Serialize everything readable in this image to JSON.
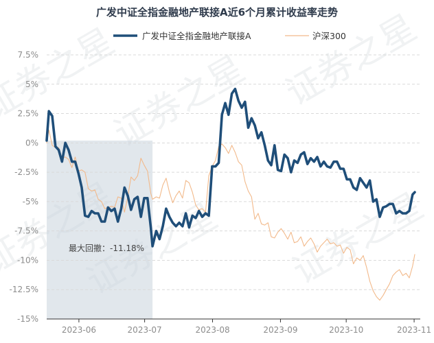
{
  "watermark": "证券之星",
  "chart_data": {
    "type": "line",
    "title": "广发中证全指金融地产联接A近6个月累计收益率走势",
    "ylim": [
      -15,
      7.5
    ],
    "y_ticks": [
      7.5,
      5,
      2.5,
      0,
      -2.5,
      -5,
      -7.5,
      -10,
      -12.5,
      -15
    ],
    "y_tick_labels": [
      "7.5%",
      "5%",
      "2.5%",
      "0%",
      "-2.5%",
      "-5%",
      "-7.5%",
      "-10%",
      "-12.5%",
      "-15%"
    ],
    "x_tick_labels": [
      "2023-06",
      "2023-07",
      "2023-08",
      "2023-09",
      "2023-10",
      "2023-11"
    ],
    "x_tick_positions": [
      14.7,
      44.7,
      75.7,
      106.7,
      136.7,
      167.7
    ],
    "xlim": [
      0,
      170.5
    ],
    "legend_position": "top",
    "annotation": {
      "text": "最大回撤：-11.18%",
      "start_x": 0,
      "end_x": 48.3
    },
    "series": [
      {
        "name": "广发中证全指金融地产联接A",
        "color": "#1f4e79",
        "values": [
          [
            0,
            0.2
          ],
          [
            1,
            2.7
          ],
          [
            2.5,
            2.3
          ],
          [
            4,
            -0.3
          ],
          [
            5.5,
            -0.6
          ],
          [
            7,
            -1.6
          ],
          [
            8.5,
            0.0
          ],
          [
            10,
            -0.6
          ],
          [
            11.5,
            -1.6
          ],
          [
            13,
            -1.6
          ],
          [
            14.5,
            -2.6
          ],
          [
            16,
            -3.8
          ],
          [
            17.5,
            -6.2
          ],
          [
            19,
            -6.3
          ],
          [
            20.5,
            -5.8
          ],
          [
            22,
            -6.0
          ],
          [
            23.5,
            -6.0
          ],
          [
            25,
            -6.7
          ],
          [
            26.5,
            -6.7
          ],
          [
            28,
            -5.5
          ],
          [
            29.5,
            -5.8
          ],
          [
            31,
            -5.6
          ],
          [
            32.5,
            -6.7
          ],
          [
            34,
            -5.6
          ],
          [
            35.5,
            -3.8
          ],
          [
            37,
            -4.5
          ],
          [
            38.5,
            -5.7
          ],
          [
            40,
            -4.8
          ],
          [
            41.5,
            -4.6
          ],
          [
            43,
            -6.3
          ],
          [
            44.5,
            -4.7
          ],
          [
            46,
            -4.7
          ],
          [
            47.5,
            -7.2
          ],
          [
            48.3,
            -8.8
          ],
          [
            50,
            -7.5
          ],
          [
            51.5,
            -8.2
          ],
          [
            53,
            -7.1
          ],
          [
            54.5,
            -5.6
          ],
          [
            56,
            -6.3
          ],
          [
            57.5,
            -6.8
          ],
          [
            59,
            -7.1
          ],
          [
            60.5,
            -6.8
          ],
          [
            62,
            -7.1
          ],
          [
            63.5,
            -6.0
          ],
          [
            65,
            -7.2
          ],
          [
            66.5,
            -6.2
          ],
          [
            68,
            -6.4
          ],
          [
            69.5,
            -5.8
          ],
          [
            71,
            -6.3
          ],
          [
            72.5,
            -6.0
          ],
          [
            74,
            -6.2
          ],
          [
            75.5,
            -2.0
          ],
          [
            77,
            -2.0
          ],
          [
            78.5,
            -1.7
          ],
          [
            80,
            2.4
          ],
          [
            81.5,
            3.4
          ],
          [
            83,
            2.4
          ],
          [
            84.5,
            4.2
          ],
          [
            86,
            4.6
          ],
          [
            87.5,
            3.6
          ],
          [
            89,
            3.0
          ],
          [
            90.5,
            3.5
          ],
          [
            92,
            1.3
          ],
          [
            93.5,
            2.1
          ],
          [
            95,
            1.5
          ],
          [
            96.5,
            0.4
          ],
          [
            98,
            0.9
          ],
          [
            99.5,
            -0.2
          ],
          [
            101,
            -1.5
          ],
          [
            102.5,
            -1.9
          ],
          [
            104,
            -0.2
          ],
          [
            105.5,
            -2.3
          ],
          [
            107,
            -2.4
          ],
          [
            108.5,
            -1.0
          ],
          [
            110,
            -1.3
          ],
          [
            111.5,
            -2.5
          ],
          [
            113,
            -1.5
          ],
          [
            114.5,
            -1.7
          ],
          [
            116,
            -1.0
          ],
          [
            117.5,
            -0.8
          ],
          [
            119,
            -1.8
          ],
          [
            120.5,
            -1.3
          ],
          [
            122,
            -1.6
          ],
          [
            123.5,
            -1.2
          ],
          [
            125,
            -2.0
          ],
          [
            126.5,
            -1.6
          ],
          [
            128,
            -2.0
          ],
          [
            129.5,
            -2.1
          ],
          [
            131,
            -1.6
          ],
          [
            132.5,
            -1.6
          ],
          [
            134,
            -2.2
          ],
          [
            135.5,
            -2.2
          ],
          [
            137,
            -3.1
          ],
          [
            138.5,
            -3.1
          ],
          [
            140,
            -3.8
          ],
          [
            141.5,
            -4.0
          ],
          [
            143,
            -3.0
          ],
          [
            144.5,
            -3.4
          ],
          [
            146,
            -3.8
          ],
          [
            147.5,
            -3.2
          ],
          [
            149,
            -5.0
          ],
          [
            150.5,
            -4.8
          ],
          [
            152,
            -6.3
          ],
          [
            153.5,
            -5.5
          ],
          [
            155,
            -5.4
          ],
          [
            156.5,
            -5.2
          ],
          [
            158,
            -5.2
          ],
          [
            159.5,
            -6.0
          ],
          [
            161,
            -5.8
          ],
          [
            162.5,
            -6.0
          ],
          [
            164,
            -6.0
          ],
          [
            165.5,
            -5.8
          ],
          [
            167,
            -4.4
          ],
          [
            168,
            -4.2
          ]
        ]
      },
      {
        "name": "沪深300",
        "color": "#f2b98a",
        "values": [
          [
            0,
            0
          ],
          [
            1,
            1.1
          ],
          [
            2.5,
            -0.2
          ],
          [
            4,
            -0.4
          ],
          [
            5.5,
            -0.4
          ],
          [
            7,
            -1.3
          ],
          [
            8.5,
            -1.2
          ],
          [
            10,
            -1.4
          ],
          [
            11.5,
            -2.1
          ],
          [
            13,
            -1.2
          ],
          [
            14.5,
            -2.4
          ],
          [
            16,
            -2.3
          ],
          [
            17.5,
            -2.5
          ],
          [
            19,
            -3.9
          ],
          [
            20.5,
            -4.1
          ],
          [
            22,
            -4.0
          ],
          [
            23.5,
            -4.8
          ],
          [
            25,
            -5.0
          ],
          [
            26.5,
            -5.6
          ],
          [
            28,
            -5.5
          ],
          [
            29.5,
            -5.4
          ],
          [
            31,
            -5.5
          ],
          [
            32.5,
            -4.6
          ],
          [
            34,
            -4.7
          ],
          [
            35.5,
            -5.9
          ],
          [
            37,
            -4.6
          ],
          [
            38.5,
            -2.9
          ],
          [
            40,
            -3.2
          ],
          [
            41.5,
            -2.8
          ],
          [
            43,
            -1.3
          ],
          [
            44.5,
            -1.9
          ],
          [
            46,
            -2.4
          ],
          [
            47.5,
            -4.3
          ],
          [
            48.3,
            -4.8
          ],
          [
            50,
            -4.6
          ],
          [
            51.5,
            -4.7
          ],
          [
            53,
            -3.6
          ],
          [
            54.5,
            -3.0
          ],
          [
            56,
            -4.2
          ],
          [
            57.5,
            -5.1
          ],
          [
            59,
            -4.5
          ],
          [
            60.5,
            -4.1
          ],
          [
            62,
            -4.7
          ],
          [
            63.5,
            -3.2
          ],
          [
            65,
            -3.4
          ],
          [
            66.5,
            -4.2
          ],
          [
            68,
            -5.3
          ],
          [
            69.5,
            -5.7
          ],
          [
            71,
            -5.6
          ],
          [
            72.5,
            -5.9
          ],
          [
            74,
            -2.8
          ],
          [
            75.5,
            -2.0
          ],
          [
            77,
            -1.5
          ],
          [
            78.5,
            -0.3
          ],
          [
            80,
            -0.1
          ],
          [
            81.5,
            -0.4
          ],
          [
            83,
            -0.9
          ],
          [
            84.5,
            -0.2
          ],
          [
            86,
            -0.8
          ],
          [
            87.5,
            -1.6
          ],
          [
            89,
            -1.9
          ],
          [
            90.5,
            -3.3
          ],
          [
            92,
            -4.1
          ],
          [
            93.5,
            -4.6
          ],
          [
            95,
            -6.5
          ],
          [
            96.5,
            -6.0
          ],
          [
            98,
            -6.9
          ],
          [
            99.5,
            -7.0
          ],
          [
            101,
            -6.8
          ],
          [
            102.5,
            -8.0
          ],
          [
            104,
            -8.1
          ],
          [
            105.5,
            -7.6
          ],
          [
            107,
            -7.3
          ],
          [
            108.5,
            -7.7
          ],
          [
            110,
            -8.2
          ],
          [
            111.5,
            -7.6
          ],
          [
            113,
            -8.5
          ],
          [
            114.5,
            -8.4
          ],
          [
            116,
            -8.0
          ],
          [
            117.5,
            -8.8
          ],
          [
            119,
            -8.4
          ],
          [
            120.5,
            -8.1
          ],
          [
            122,
            -8.6
          ],
          [
            123.5,
            -9.3
          ],
          [
            125,
            -8.8
          ],
          [
            126.5,
            -8.5
          ],
          [
            128,
            -8.2
          ],
          [
            129.5,
            -8.6
          ],
          [
            131,
            -8.5
          ],
          [
            132.5,
            -8.8
          ],
          [
            134,
            -8.7
          ],
          [
            135.5,
            -9.4
          ],
          [
            137,
            -8.9
          ],
          [
            138.5,
            -9.1
          ],
          [
            140,
            -10.3
          ],
          [
            141.5,
            -9.8
          ],
          [
            143,
            -10.0
          ],
          [
            144.5,
            -9.6
          ],
          [
            146,
            -10.6
          ],
          [
            147.5,
            -11.8
          ],
          [
            149,
            -12.6
          ],
          [
            150.5,
            -13.1
          ],
          [
            152,
            -13.4
          ],
          [
            153.5,
            -13.0
          ],
          [
            155,
            -12.5
          ],
          [
            156.5,
            -12.0
          ],
          [
            158,
            -11.3
          ],
          [
            159.5,
            -11.0
          ],
          [
            161,
            -10.8
          ],
          [
            162.5,
            -11.3
          ],
          [
            164,
            -11.1
          ],
          [
            165.5,
            -11.5
          ],
          [
            167,
            -10.5
          ],
          [
            168,
            -9.5
          ]
        ]
      }
    ]
  }
}
